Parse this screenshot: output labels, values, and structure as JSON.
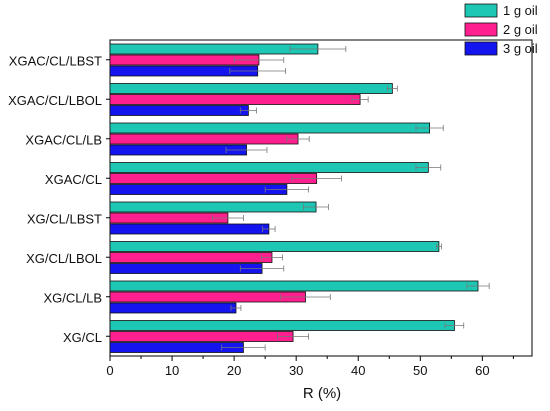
{
  "chart_data": {
    "type": "bar",
    "orientation": "horizontal",
    "title": "",
    "xlabel": "R (%)",
    "ylabel": "",
    "xlim": [
      0,
      68
    ],
    "x_ticks": [
      0,
      10,
      20,
      30,
      40,
      50,
      60
    ],
    "categories": [
      "XGAC/CL/LBST",
      "XGAC/CL/LBOL",
      "XGAC/CL/LB",
      "XGAC/CL",
      "XG/CL/LBST",
      "XG/CL/LBOL",
      "XG/CL/LB",
      "XG/CL"
    ],
    "series": [
      {
        "name": "1 g oil",
        "color": "#1ec6b4",
        "values": [
          33.5,
          45.5,
          51.5,
          51.3,
          33.2,
          53.0,
          59.3,
          55.5
        ],
        "errors": [
          4.5,
          0.8,
          2.2,
          2.0,
          2.0,
          0.4,
          1.8,
          1.5
        ]
      },
      {
        "name": "2 g oil",
        "color": "#ff1f8f",
        "values": [
          24.0,
          40.3,
          30.3,
          33.3,
          19.0,
          26.1,
          31.5,
          29.5
        ],
        "errors": [
          4.0,
          1.3,
          1.8,
          4.0,
          2.5,
          1.7,
          4.0,
          2.5
        ]
      },
      {
        "name": "3 g oil",
        "color": "#1414ee",
        "values": [
          23.8,
          22.3,
          22.0,
          28.5,
          25.6,
          24.5,
          20.3,
          21.5
        ],
        "errors": [
          4.5,
          1.3,
          3.3,
          3.5,
          1.0,
          3.5,
          0.8,
          3.5
        ]
      }
    ],
    "legend_position": "top-right",
    "grid": false
  }
}
